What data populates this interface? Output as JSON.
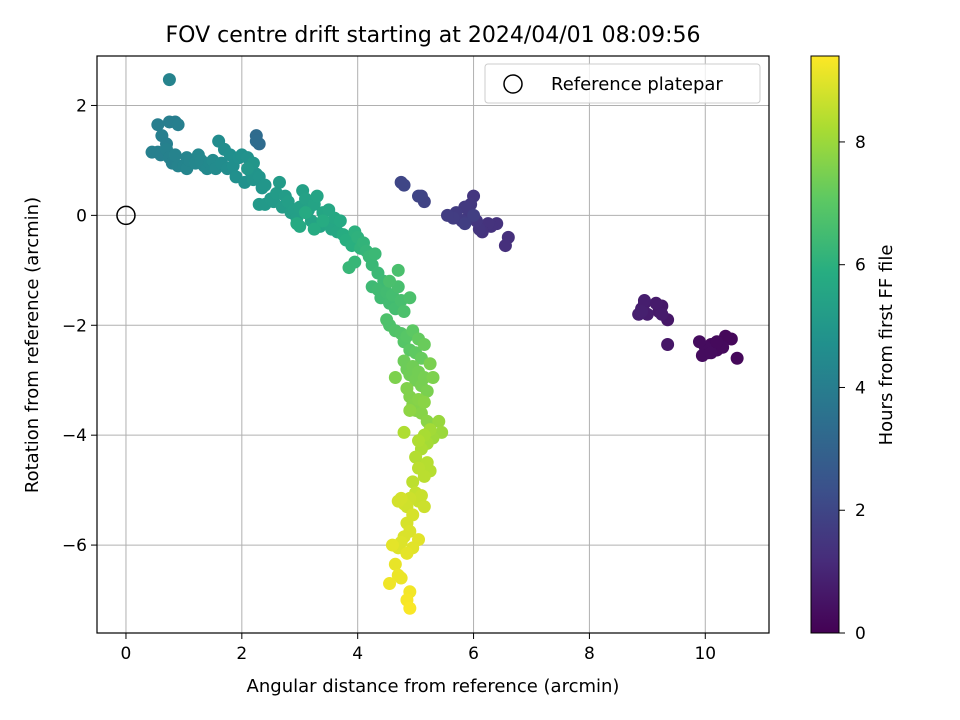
{
  "chart_data": {
    "type": "scatter",
    "title": "FOV centre drift starting at 2024/04/01 08:09:56",
    "xlabel": "Angular distance from reference (arcmin)",
    "ylabel": "Rotation from reference (arcmin)",
    "xlim": [
      -0.5,
      11.1
    ],
    "ylim": [
      -7.6,
      2.9
    ],
    "xticks": [
      0,
      2,
      4,
      6,
      8,
      10
    ],
    "yticks": [
      2,
      0,
      -2,
      -4,
      -6
    ],
    "grid": true,
    "legend": {
      "placement": "upper-right",
      "label": "Reference platepar"
    },
    "reference_point": {
      "x": 0,
      "y": 0
    },
    "colorbar": {
      "label": "Hours from first FF file",
      "range": [
        0,
        9.4
      ],
      "ticks": [
        0,
        2,
        4,
        6,
        8
      ],
      "colormap": "viridis"
    },
    "points": [
      {
        "x": 10.55,
        "y": -2.6,
        "h": 0.2
      },
      {
        "x": 10.45,
        "y": -2.25,
        "h": 0.2
      },
      {
        "x": 10.35,
        "y": -2.2,
        "h": 0.2
      },
      {
        "x": 10.3,
        "y": -2.4,
        "h": 0.25
      },
      {
        "x": 10.2,
        "y": -2.45,
        "h": 0.25
      },
      {
        "x": 10.1,
        "y": -2.35,
        "h": 0.25
      },
      {
        "x": 10.05,
        "y": -2.5,
        "h": 0.25
      },
      {
        "x": 10.0,
        "y": -2.4,
        "h": 0.3
      },
      {
        "x": 9.95,
        "y": -2.55,
        "h": 0.3
      },
      {
        "x": 9.9,
        "y": -2.3,
        "h": 0.3
      },
      {
        "x": 10.1,
        "y": -2.5,
        "h": 0.3
      },
      {
        "x": 10.2,
        "y": -2.3,
        "h": 0.25
      },
      {
        "x": 9.35,
        "y": -2.35,
        "h": 0.6
      },
      {
        "x": 9.35,
        "y": -1.9,
        "h": 0.6
      },
      {
        "x": 9.25,
        "y": -1.65,
        "h": 0.65
      },
      {
        "x": 9.2,
        "y": -1.75,
        "h": 0.65
      },
      {
        "x": 9.15,
        "y": -1.6,
        "h": 0.7
      },
      {
        "x": 9.25,
        "y": -1.8,
        "h": 0.7
      },
      {
        "x": 9.0,
        "y": -1.8,
        "h": 0.75
      },
      {
        "x": 8.95,
        "y": -1.6,
        "h": 0.75
      },
      {
        "x": 8.9,
        "y": -1.7,
        "h": 0.8
      },
      {
        "x": 8.85,
        "y": -1.8,
        "h": 0.8
      },
      {
        "x": 8.95,
        "y": -1.55,
        "h": 0.8
      },
      {
        "x": 8.9,
        "y": -1.75,
        "h": 0.85
      },
      {
        "x": 6.6,
        "y": -0.4,
        "h": 1.3
      },
      {
        "x": 6.55,
        "y": -0.55,
        "h": 1.3
      },
      {
        "x": 6.4,
        "y": -0.15,
        "h": 1.35
      },
      {
        "x": 6.3,
        "y": -0.2,
        "h": 1.35
      },
      {
        "x": 6.25,
        "y": -0.15,
        "h": 1.4
      },
      {
        "x": 6.15,
        "y": -0.3,
        "h": 1.4
      },
      {
        "x": 6.1,
        "y": -0.25,
        "h": 1.45
      },
      {
        "x": 6.05,
        "y": -0.1,
        "h": 1.5
      },
      {
        "x": 6.0,
        "y": 0.35,
        "h": 1.5
      },
      {
        "x": 5.95,
        "y": 0.2,
        "h": 1.55
      },
      {
        "x": 5.9,
        "y": -0.05,
        "h": 1.55
      },
      {
        "x": 5.85,
        "y": 0.15,
        "h": 1.6
      },
      {
        "x": 5.8,
        "y": -0.1,
        "h": 1.65
      },
      {
        "x": 5.7,
        "y": 0.05,
        "h": 1.65
      },
      {
        "x": 5.65,
        "y": -0.05,
        "h": 1.7
      },
      {
        "x": 5.55,
        "y": 0.0,
        "h": 1.7
      },
      {
        "x": 5.85,
        "y": -0.15,
        "h": 1.75
      },
      {
        "x": 6.0,
        "y": 0.0,
        "h": 1.75
      },
      {
        "x": 5.15,
        "y": 0.25,
        "h": 1.9
      },
      {
        "x": 5.1,
        "y": 0.35,
        "h": 1.9
      },
      {
        "x": 5.05,
        "y": 0.35,
        "h": 1.95
      },
      {
        "x": 4.8,
        "y": 0.55,
        "h": 2.0
      },
      {
        "x": 4.75,
        "y": 0.6,
        "h": 2.0
      },
      {
        "x": 2.25,
        "y": 1.45,
        "h": 3.3
      },
      {
        "x": 2.3,
        "y": 1.3,
        "h": 3.3
      },
      {
        "x": 2.25,
        "y": 1.35,
        "h": 3.35
      },
      {
        "x": 0.75,
        "y": 2.47,
        "h": 4.2
      },
      {
        "x": 0.55,
        "y": 1.65,
        "h": 4.0
      },
      {
        "x": 0.75,
        "y": 1.7,
        "h": 4.0
      },
      {
        "x": 0.85,
        "y": 1.7,
        "h": 4.0
      },
      {
        "x": 0.9,
        "y": 1.65,
        "h": 4.05
      },
      {
        "x": 0.62,
        "y": 1.45,
        "h": 4.05
      },
      {
        "x": 0.7,
        "y": 1.3,
        "h": 4.05
      },
      {
        "x": 0.45,
        "y": 1.15,
        "h": 4.1
      },
      {
        "x": 0.55,
        "y": 1.15,
        "h": 4.1
      },
      {
        "x": 0.6,
        "y": 1.1,
        "h": 4.1
      },
      {
        "x": 0.7,
        "y": 1.2,
        "h": 4.15
      },
      {
        "x": 0.75,
        "y": 1.05,
        "h": 4.15
      },
      {
        "x": 0.8,
        "y": 0.95,
        "h": 4.15
      },
      {
        "x": 0.85,
        "y": 1.1,
        "h": 4.2
      },
      {
        "x": 0.9,
        "y": 0.9,
        "h": 4.2
      },
      {
        "x": 1.0,
        "y": 0.9,
        "h": 4.25
      },
      {
        "x": 1.05,
        "y": 1.05,
        "h": 4.25
      },
      {
        "x": 1.05,
        "y": 0.85,
        "h": 4.3
      },
      {
        "x": 1.1,
        "y": 1.0,
        "h": 4.3
      },
      {
        "x": 1.2,
        "y": 0.95,
        "h": 4.35
      },
      {
        "x": 1.25,
        "y": 1.1,
        "h": 4.35
      },
      {
        "x": 1.3,
        "y": 1.0,
        "h": 4.4
      },
      {
        "x": 1.35,
        "y": 0.9,
        "h": 4.4
      },
      {
        "x": 1.4,
        "y": 0.85,
        "h": 4.45
      },
      {
        "x": 1.45,
        "y": 0.95,
        "h": 4.45
      },
      {
        "x": 1.5,
        "y": 1.0,
        "h": 4.5
      },
      {
        "x": 1.55,
        "y": 0.85,
        "h": 4.5
      },
      {
        "x": 1.6,
        "y": 1.35,
        "h": 4.55
      },
      {
        "x": 1.65,
        "y": 0.95,
        "h": 4.55
      },
      {
        "x": 1.7,
        "y": 1.2,
        "h": 4.6
      },
      {
        "x": 1.75,
        "y": 0.85,
        "h": 4.6
      },
      {
        "x": 1.8,
        "y": 1.1,
        "h": 4.65
      },
      {
        "x": 1.85,
        "y": 0.9,
        "h": 4.65
      },
      {
        "x": 1.9,
        "y": 0.7,
        "h": 4.7
      },
      {
        "x": 1.95,
        "y": 1.05,
        "h": 4.7
      },
      {
        "x": 2.0,
        "y": 1.1,
        "h": 4.75
      },
      {
        "x": 2.05,
        "y": 0.6,
        "h": 4.75
      },
      {
        "x": 2.1,
        "y": 1.05,
        "h": 4.8
      },
      {
        "x": 2.15,
        "y": 0.8,
        "h": 4.8
      },
      {
        "x": 2.2,
        "y": 0.65,
        "h": 4.85
      },
      {
        "x": 2.25,
        "y": 0.75,
        "h": 4.85
      },
      {
        "x": 2.3,
        "y": 0.7,
        "h": 4.9
      },
      {
        "x": 2.35,
        "y": 0.5,
        "h": 4.9
      },
      {
        "x": 2.4,
        "y": 0.55,
        "h": 4.95
      },
      {
        "x": 2.2,
        "y": 0.95,
        "h": 4.95
      },
      {
        "x": 2.1,
        "y": 0.85,
        "h": 5.0
      },
      {
        "x": 2.3,
        "y": 0.2,
        "h": 5.05
      },
      {
        "x": 2.4,
        "y": 0.2,
        "h": 5.05
      },
      {
        "x": 2.5,
        "y": 0.3,
        "h": 5.1
      },
      {
        "x": 2.55,
        "y": 0.25,
        "h": 5.1
      },
      {
        "x": 2.6,
        "y": 0.4,
        "h": 5.15
      },
      {
        "x": 2.65,
        "y": 0.6,
        "h": 5.15
      },
      {
        "x": 2.7,
        "y": 0.15,
        "h": 5.2
      },
      {
        "x": 2.75,
        "y": 0.35,
        "h": 5.2
      },
      {
        "x": 2.8,
        "y": 0.25,
        "h": 5.25
      },
      {
        "x": 2.85,
        "y": 0.05,
        "h": 5.25
      },
      {
        "x": 2.9,
        "y": 0.1,
        "h": 5.3
      },
      {
        "x": 2.95,
        "y": -0.05,
        "h": 5.3
      },
      {
        "x": 3.0,
        "y": 0.15,
        "h": 5.35
      },
      {
        "x": 3.05,
        "y": 0.45,
        "h": 5.35
      },
      {
        "x": 3.1,
        "y": 0.3,
        "h": 5.4
      },
      {
        "x": 3.15,
        "y": 0.1,
        "h": 5.4
      },
      {
        "x": 3.2,
        "y": -0.1,
        "h": 5.45
      },
      {
        "x": 3.25,
        "y": 0.2,
        "h": 5.45
      },
      {
        "x": 3.3,
        "y": 0.35,
        "h": 5.5
      },
      {
        "x": 3.35,
        "y": -0.2,
        "h": 5.5
      },
      {
        "x": 3.4,
        "y": 0.05,
        "h": 5.55
      },
      {
        "x": 3.45,
        "y": -0.15,
        "h": 5.55
      },
      {
        "x": 3.5,
        "y": 0.1,
        "h": 5.6
      },
      {
        "x": 3.55,
        "y": -0.25,
        "h": 5.6
      },
      {
        "x": 3.6,
        "y": -0.05,
        "h": 5.65
      },
      {
        "x": 3.65,
        "y": -0.3,
        "h": 5.65
      },
      {
        "x": 3.7,
        "y": -0.1,
        "h": 5.7
      },
      {
        "x": 3.0,
        "y": -0.2,
        "h": 5.7
      },
      {
        "x": 2.95,
        "y": -0.15,
        "h": 5.75
      },
      {
        "x": 3.1,
        "y": 0.05,
        "h": 5.75
      },
      {
        "x": 3.25,
        "y": -0.25,
        "h": 5.8
      },
      {
        "x": 3.4,
        "y": -0.1,
        "h": 5.8
      },
      {
        "x": 3.75,
        "y": -0.35,
        "h": 5.85
      },
      {
        "x": 3.8,
        "y": -0.45,
        "h": 5.9
      },
      {
        "x": 3.9,
        "y": -0.55,
        "h": 5.95
      },
      {
        "x": 3.95,
        "y": -0.3,
        "h": 6.0
      },
      {
        "x": 4.0,
        "y": -0.4,
        "h": 6.05
      },
      {
        "x": 4.05,
        "y": -0.6,
        "h": 6.1
      },
      {
        "x": 4.1,
        "y": -0.5,
        "h": 6.15
      },
      {
        "x": 4.15,
        "y": -0.65,
        "h": 6.2
      },
      {
        "x": 3.85,
        "y": -0.95,
        "h": 6.25
      },
      {
        "x": 3.95,
        "y": -0.85,
        "h": 6.25
      },
      {
        "x": 4.2,
        "y": -0.75,
        "h": 6.3
      },
      {
        "x": 4.25,
        "y": -0.9,
        "h": 6.3
      },
      {
        "x": 4.3,
        "y": -0.7,
        "h": 6.35
      },
      {
        "x": 4.35,
        "y": -1.05,
        "h": 6.35
      },
      {
        "x": 4.45,
        "y": -1.2,
        "h": 6.4
      },
      {
        "x": 4.25,
        "y": -1.3,
        "h": 6.4
      },
      {
        "x": 4.35,
        "y": -1.35,
        "h": 6.45
      },
      {
        "x": 4.4,
        "y": -1.5,
        "h": 6.45
      },
      {
        "x": 4.5,
        "y": -1.4,
        "h": 6.5
      },
      {
        "x": 4.55,
        "y": -1.6,
        "h": 6.5
      },
      {
        "x": 4.6,
        "y": -1.45,
        "h": 6.55
      },
      {
        "x": 4.65,
        "y": -1.7,
        "h": 6.55
      },
      {
        "x": 4.7,
        "y": -1.3,
        "h": 6.6
      },
      {
        "x": 4.75,
        "y": -1.55,
        "h": 6.6
      },
      {
        "x": 4.7,
        "y": -1.0,
        "h": 6.65
      },
      {
        "x": 4.55,
        "y": -1.2,
        "h": 6.65
      },
      {
        "x": 4.8,
        "y": -1.75,
        "h": 6.7
      },
      {
        "x": 4.9,
        "y": -1.5,
        "h": 6.7
      },
      {
        "x": 4.5,
        "y": -1.9,
        "h": 6.75
      },
      {
        "x": 4.55,
        "y": -2.0,
        "h": 6.75
      },
      {
        "x": 4.65,
        "y": -2.1,
        "h": 6.8
      },
      {
        "x": 4.75,
        "y": -2.15,
        "h": 6.85
      },
      {
        "x": 4.8,
        "y": -2.3,
        "h": 6.9
      },
      {
        "x": 4.85,
        "y": -2.2,
        "h": 6.95
      },
      {
        "x": 4.9,
        "y": -2.45,
        "h": 7.0
      },
      {
        "x": 4.95,
        "y": -2.1,
        "h": 7.05
      },
      {
        "x": 5.0,
        "y": -2.5,
        "h": 7.1
      },
      {
        "x": 5.05,
        "y": -2.25,
        "h": 7.15
      },
      {
        "x": 5.1,
        "y": -2.6,
        "h": 7.2
      },
      {
        "x": 5.15,
        "y": -2.35,
        "h": 7.25
      },
      {
        "x": 4.8,
        "y": -2.65,
        "h": 7.3
      },
      {
        "x": 4.85,
        "y": -2.8,
        "h": 7.3
      },
      {
        "x": 4.9,
        "y": -2.9,
        "h": 7.35
      },
      {
        "x": 4.95,
        "y": -2.75,
        "h": 7.35
      },
      {
        "x": 5.0,
        "y": -3.0,
        "h": 7.4
      },
      {
        "x": 5.05,
        "y": -2.85,
        "h": 7.4
      },
      {
        "x": 5.1,
        "y": -3.1,
        "h": 7.45
      },
      {
        "x": 5.15,
        "y": -2.95,
        "h": 7.45
      },
      {
        "x": 5.2,
        "y": -3.2,
        "h": 7.5
      },
      {
        "x": 5.25,
        "y": -2.7,
        "h": 7.5
      },
      {
        "x": 5.3,
        "y": -2.95,
        "h": 7.55
      },
      {
        "x": 4.65,
        "y": -2.95,
        "h": 7.55
      },
      {
        "x": 4.85,
        "y": -3.15,
        "h": 7.6
      },
      {
        "x": 4.9,
        "y": -3.3,
        "h": 7.6
      },
      {
        "x": 4.95,
        "y": -3.45,
        "h": 7.65
      },
      {
        "x": 5.0,
        "y": -3.55,
        "h": 7.65
      },
      {
        "x": 5.05,
        "y": -3.35,
        "h": 7.7
      },
      {
        "x": 5.1,
        "y": -3.6,
        "h": 7.7
      },
      {
        "x": 5.15,
        "y": -3.4,
        "h": 7.75
      },
      {
        "x": 5.2,
        "y": -3.75,
        "h": 7.75
      },
      {
        "x": 4.9,
        "y": -3.55,
        "h": 7.8
      },
      {
        "x": 5.4,
        "y": -3.75,
        "h": 7.95
      },
      {
        "x": 5.45,
        "y": -3.95,
        "h": 8.0
      },
      {
        "x": 5.3,
        "y": -4.05,
        "h": 8.05
      },
      {
        "x": 5.25,
        "y": -3.9,
        "h": 8.1
      },
      {
        "x": 5.2,
        "y": -4.15,
        "h": 8.15
      },
      {
        "x": 5.15,
        "y": -4.0,
        "h": 8.2
      },
      {
        "x": 5.1,
        "y": -4.25,
        "h": 8.25
      },
      {
        "x": 5.05,
        "y": -4.1,
        "h": 8.3
      },
      {
        "x": 4.8,
        "y": -3.95,
        "h": 8.3
      },
      {
        "x": 5.0,
        "y": -4.4,
        "h": 8.35
      },
      {
        "x": 5.1,
        "y": -4.55,
        "h": 8.35
      },
      {
        "x": 5.2,
        "y": -4.5,
        "h": 8.4
      },
      {
        "x": 5.25,
        "y": -4.65,
        "h": 8.4
      },
      {
        "x": 5.15,
        "y": -4.75,
        "h": 8.45
      },
      {
        "x": 5.05,
        "y": -4.6,
        "h": 8.45
      },
      {
        "x": 4.95,
        "y": -4.85,
        "h": 8.5
      },
      {
        "x": 5.0,
        "y": -5.05,
        "h": 8.6
      },
      {
        "x": 5.05,
        "y": -5.2,
        "h": 8.65
      },
      {
        "x": 5.1,
        "y": -5.1,
        "h": 8.65
      },
      {
        "x": 5.15,
        "y": -5.3,
        "h": 8.7
      },
      {
        "x": 4.9,
        "y": -5.15,
        "h": 8.7
      },
      {
        "x": 4.85,
        "y": -5.3,
        "h": 8.75
      },
      {
        "x": 4.8,
        "y": -5.25,
        "h": 8.75
      },
      {
        "x": 4.75,
        "y": -5.15,
        "h": 8.8
      },
      {
        "x": 4.7,
        "y": -5.2,
        "h": 8.8
      },
      {
        "x": 4.95,
        "y": -5.45,
        "h": 8.85
      },
      {
        "x": 4.85,
        "y": -5.6,
        "h": 8.85
      },
      {
        "x": 4.9,
        "y": -5.75,
        "h": 8.9
      },
      {
        "x": 4.8,
        "y": -5.85,
        "h": 8.9
      },
      {
        "x": 4.75,
        "y": -5.95,
        "h": 8.95
      },
      {
        "x": 4.7,
        "y": -6.05,
        "h": 8.95
      },
      {
        "x": 5.05,
        "y": -5.9,
        "h": 9.0
      },
      {
        "x": 4.95,
        "y": -6.05,
        "h": 9.0
      },
      {
        "x": 4.85,
        "y": -6.15,
        "h": 9.05
      },
      {
        "x": 4.6,
        "y": -6.0,
        "h": 9.05
      },
      {
        "x": 4.65,
        "y": -6.35,
        "h": 9.1
      },
      {
        "x": 4.7,
        "y": -6.55,
        "h": 9.15
      },
      {
        "x": 4.75,
        "y": -6.6,
        "h": 9.15
      },
      {
        "x": 4.55,
        "y": -6.7,
        "h": 9.2
      },
      {
        "x": 4.9,
        "y": -6.85,
        "h": 9.25
      },
      {
        "x": 4.85,
        "y": -7.0,
        "h": 9.3
      },
      {
        "x": 4.9,
        "y": -7.15,
        "h": 9.35
      }
    ]
  }
}
